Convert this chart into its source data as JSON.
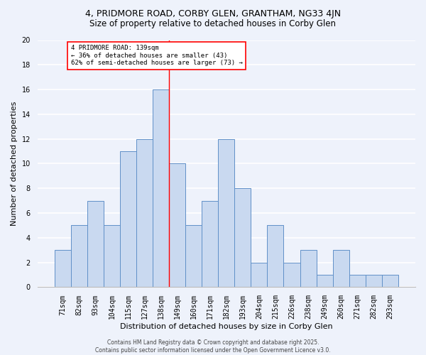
{
  "title1": "4, PRIDMORE ROAD, CORBY GLEN, GRANTHAM, NG33 4JN",
  "title2": "Size of property relative to detached houses in Corby Glen",
  "xlabel": "Distribution of detached houses by size in Corby Glen",
  "ylabel": "Number of detached properties",
  "footer1": "Contains HM Land Registry data © Crown copyright and database right 2025.",
  "footer2": "Contains public sector information licensed under the Open Government Licence v3.0.",
  "categories": [
    "71sqm",
    "82sqm",
    "93sqm",
    "104sqm",
    "115sqm",
    "127sqm",
    "138sqm",
    "149sqm",
    "160sqm",
    "171sqm",
    "182sqm",
    "193sqm",
    "204sqm",
    "215sqm",
    "226sqm",
    "238sqm",
    "249sqm",
    "260sqm",
    "271sqm",
    "282sqm",
    "293sqm"
  ],
  "values": [
    3,
    5,
    7,
    5,
    11,
    12,
    16,
    10,
    5,
    7,
    12,
    8,
    2,
    5,
    2,
    3,
    1,
    3,
    1,
    1,
    1
  ],
  "bar_color": "#c9d9f0",
  "bar_edge_color": "#6090c8",
  "vline_color": "red",
  "vline_x_index": 6,
  "annotation_text": "4 PRIDMORE ROAD: 139sqm\n← 36% of detached houses are smaller (43)\n62% of semi-detached houses are larger (73) →",
  "annotation_box_facecolor": "white",
  "annotation_box_edgecolor": "red",
  "ylim": [
    0,
    20
  ],
  "yticks": [
    0,
    2,
    4,
    6,
    8,
    10,
    12,
    14,
    16,
    18,
    20
  ],
  "bg_color": "#eef2fb",
  "grid_color": "white",
  "title1_fontsize": 9,
  "title2_fontsize": 8.5,
  "xlabel_fontsize": 8,
  "ylabel_fontsize": 8,
  "tick_fontsize": 7,
  "annotation_fontsize": 6.5,
  "footer_fontsize": 5.5
}
